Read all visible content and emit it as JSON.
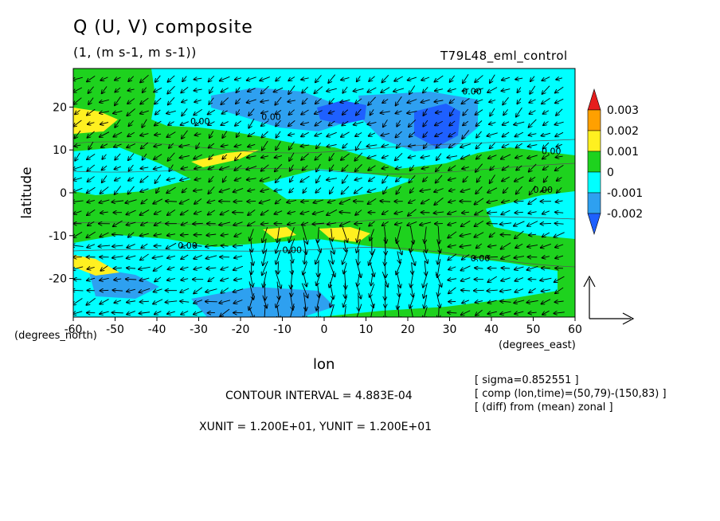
{
  "title": "Q (U, V) composite",
  "subtitle": "(1, (m s-1, m s-1))",
  "run_name": "T79L48_eml_control",
  "contour_interval": "CONTOUR INTERVAL = 4.883E-04",
  "vector_units": "XUNIT = 1.200E+01, YUNIT = 1.200E+01",
  "info_lines": [
    "[ sigma=0.852551 ]",
    "[ comp (lon,time)=(50,79)-(150,83) ]",
    "[ (diff) from (mean) zonal ]"
  ],
  "colors": {
    "dark_blue": "#1e60ff",
    "blue": "#2ea0f0",
    "cyan": "#00ffff",
    "green": "#1ed21e",
    "yellow": "#fff020",
    "orange": "#ffa000",
    "red": "#e61e1e"
  },
  "chart_data": {
    "type": "heatmap",
    "xlabel": "lon",
    "ylabel": "latitude",
    "x_unit_note": "(degrees_east)",
    "y_unit_note": "(degrees_north)",
    "xlim": [
      -60,
      60
    ],
    "ylim": [
      -29,
      29
    ],
    "x_ticks": [
      "-60",
      "-50",
      "-40",
      "-30",
      "-20",
      "-10",
      "0",
      "10",
      "20",
      "30",
      "40",
      "50",
      "60"
    ],
    "y_ticks": [
      "20",
      "10",
      "0",
      "-10",
      "-20"
    ],
    "colorbar": {
      "labels": [
        "0.003",
        "0.002",
        "0.001",
        "0",
        "-0.001",
        "-0.002"
      ],
      "colors": [
        "#e61e1e",
        "#ffa000",
        "#fff020",
        "#1ed21e",
        "#00ffff",
        "#2ea0f0",
        "#1e60ff"
      ]
    },
    "contour_labels": [
      "0.00",
      "0.00",
      "0.00",
      "0.00",
      "0.00",
      "0.00",
      "0.00",
      "0.00"
    ],
    "regions": [
      {
        "level": "-0.001",
        "lon": [
          -20,
          60
        ],
        "lat": [
          15,
          29
        ]
      },
      {
        "level": "-0.002",
        "lon": [
          -5,
          10
        ],
        "lat": [
          17,
          22
        ]
      },
      {
        "level": "-0.002",
        "lon": [
          20,
          30
        ],
        "lat": [
          13,
          20
        ]
      },
      {
        "level": "-0.001",
        "lon": [
          -60,
          5
        ],
        "lat": [
          -29,
          -12
        ]
      },
      {
        "level": "0.001",
        "lon": [
          -60,
          -55
        ],
        "lat": [
          15,
          19
        ]
      },
      {
        "level": "0.001",
        "lon": [
          -30,
          -17
        ],
        "lat": [
          7,
          10
        ]
      },
      {
        "level": "0.001",
        "lon": [
          0,
          10
        ],
        "lat": [
          -11,
          -8
        ]
      }
    ]
  }
}
